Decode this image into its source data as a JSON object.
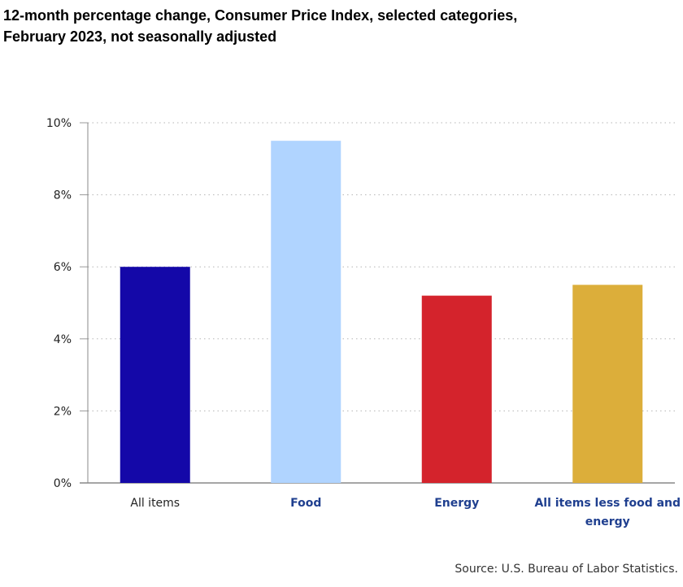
{
  "chart_data": {
    "type": "bar",
    "title_lines": [
      "12-month percentage change, Consumer Price Index, selected categories,",
      "February 2023, not seasonally adjusted"
    ],
    "categories": [
      {
        "label_lines": [
          "All items"
        ],
        "value": 6.0,
        "color": "#1408a8",
        "label_color": "#222222",
        "label_bold": false
      },
      {
        "label_lines": [
          "Food"
        ],
        "value": 9.5,
        "color": "#b0d4ff",
        "label_color": "#1f3f8f",
        "label_bold": true
      },
      {
        "label_lines": [
          "Energy"
        ],
        "value": 5.2,
        "color": "#d4232c",
        "label_color": "#1f3f8f",
        "label_bold": true
      },
      {
        "label_lines": [
          "All items less food and",
          "energy"
        ],
        "value": 5.5,
        "color": "#dcae3a",
        "label_color": "#1f3f8f",
        "label_bold": true
      }
    ],
    "y_ticks": [
      {
        "value": 0,
        "label": "0%"
      },
      {
        "value": 2,
        "label": "2%"
      },
      {
        "value": 4,
        "label": "4%"
      },
      {
        "value": 6,
        "label": "6%"
      },
      {
        "value": 8,
        "label": "8%"
      },
      {
        "value": 10,
        "label": "10%"
      }
    ],
    "ylim": [
      0,
      10
    ],
    "grid": true,
    "legend": "none"
  },
  "source_text": "Source: U.S. Bureau of Labor Statistics."
}
